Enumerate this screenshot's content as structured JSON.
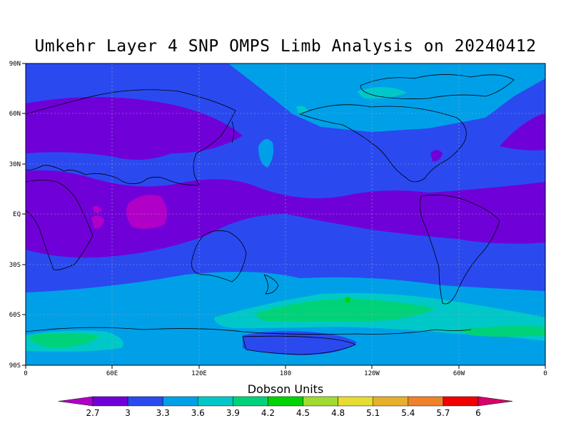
{
  "title": "Umkehr Layer 4 SNP OMPS Limb Analysis on 20240412",
  "map": {
    "y_ticks": [
      "90N",
      "60N",
      "30N",
      "EQ",
      "30S",
      "60S",
      "90S"
    ],
    "x_ticks": [
      "0",
      "60E",
      "120E",
      "180",
      "120W",
      "60W",
      "0"
    ]
  },
  "colorbar": {
    "title": "Dobson Units",
    "levels": [
      "2.7",
      "3",
      "3.3",
      "3.6",
      "3.9",
      "4.2",
      "4.5",
      "4.8",
      "5.1",
      "5.4",
      "5.7",
      "6"
    ],
    "colors": [
      "#b000c8",
      "#7000d8",
      "#2a4af0",
      "#00a0e8",
      "#00c8c8",
      "#00d27a",
      "#00d400",
      "#a0dc30",
      "#e6dc32",
      "#e6af2d",
      "#f0822a",
      "#f00000",
      "#d8006a"
    ]
  },
  "chart_data": {
    "type": "heatmap",
    "title": "Umkehr Layer 4 SNP OMPS Limb Analysis on 20240412",
    "unit": "Dobson Units",
    "x_range": [
      "0",
      "0"
    ],
    "y_range": [
      "90S",
      "90N"
    ],
    "bands": [
      {
        "lat_range": [
          "30N",
          "60N"
        ],
        "approx_value": "2.7-3.0 (Eurasia), 3.3 (Pacific/N. America)"
      },
      {
        "lat_range": [
          "10S",
          "20N"
        ],
        "approx_value": "2.7-3.0"
      },
      {
        "lat_range": [
          "60N",
          "90N"
        ],
        "approx_value": "3.3-3.6"
      },
      {
        "lat_range": [
          "30S",
          "45S"
        ],
        "approx_value": "3.3-3.6"
      },
      {
        "lat_range": [
          "45S",
          "65S"
        ],
        "approx_value": "3.6-4.2"
      },
      {
        "lat_range": [
          "65S",
          "90S"
        ],
        "approx_value": "3.6-3.9"
      }
    ]
  }
}
